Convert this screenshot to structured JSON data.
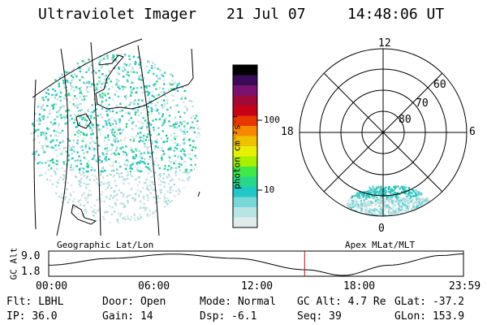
{
  "header": {
    "instrument": "Ultraviolet Imager",
    "date": "21 Jul 07",
    "time": "14:48:06 UT"
  },
  "colorbar": {
    "unit_label": "photon cm⁻²s⁻¹",
    "ticks": [
      "100",
      "10"
    ],
    "colors": [
      "#000000",
      "#3b0a58",
      "#7a1270",
      "#a00a38",
      "#c80018",
      "#e83800",
      "#f88800",
      "#f0c000",
      "#e8f000",
      "#a8f000",
      "#40e848",
      "#28d888",
      "#20c8c8",
      "#78d8d8",
      "#b8e4e4",
      "#e0ecec"
    ]
  },
  "left_map": {
    "name": "geographic-map",
    "label": "Geographic Lat/Lon",
    "aurora_color": "#30c8c8"
  },
  "right_map": {
    "name": "polar-plot",
    "label": "Apex MLat/MLT",
    "mlt_labels": {
      "top": "12",
      "left": "18",
      "right": "6",
      "bottom": "0"
    },
    "lat_labels": [
      "60",
      "70",
      "80"
    ]
  },
  "orbit": {
    "y_axis_label": "GC Alt",
    "y_ticks": [
      "9.0",
      "1.8"
    ],
    "x_ticks": [
      "00:00",
      "06:00",
      "12:00",
      "18:00",
      "23:59"
    ],
    "current_time_fraction": 0.617,
    "marker_color": "#e00000"
  },
  "status": {
    "row1": [
      {
        "key": "Flt:",
        "value": "LBHL"
      },
      {
        "key": "Door:",
        "value": "Open"
      },
      {
        "key": "Mode:",
        "value": "Normal"
      },
      {
        "key": "GC Alt:",
        "value": "4.7 Re"
      },
      {
        "key": "GLat:",
        "value": "-37.2"
      }
    ],
    "row2": [
      {
        "key": "IP:",
        "value": "36.0"
      },
      {
        "key": "Gain:",
        "value": "14"
      },
      {
        "key": "Dsp:",
        "value": "-6.1"
      },
      {
        "key": "Seq:",
        "value": "39"
      },
      {
        "key": "GLon:",
        "value": "153.9"
      }
    ]
  }
}
